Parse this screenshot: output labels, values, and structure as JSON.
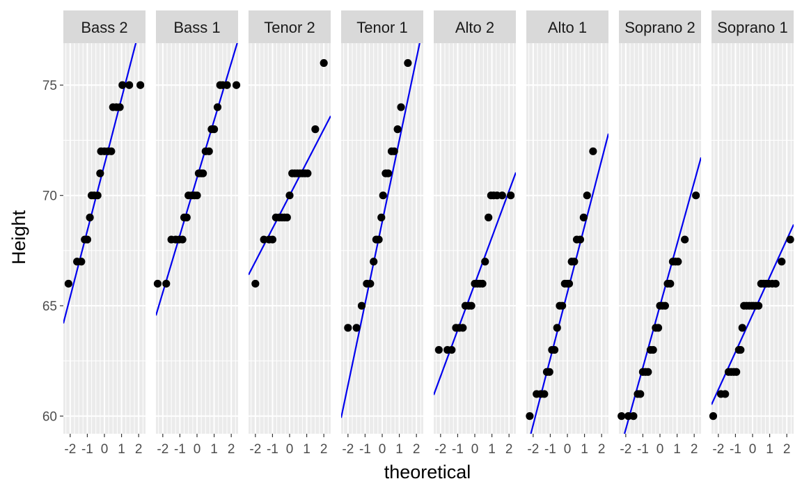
{
  "chart_data": {
    "type": "scatter",
    "subtype": "faceted normal Q-Q plot with reference lines",
    "xlabel": "theoretical",
    "ylabel": "Height",
    "xlim": [
      -2.4,
      2.4
    ],
    "ylim": [
      59.2,
      76.9
    ],
    "x_ticks": [
      -2,
      -1,
      0,
      1,
      2
    ],
    "x_tick_labels": [
      "-2",
      "-1",
      "0",
      "1",
      "2"
    ],
    "y_ticks": [
      60,
      65,
      70,
      75
    ],
    "y_tick_labels": [
      "60",
      "65",
      "70",
      "75"
    ],
    "grid": true,
    "legend": "none",
    "colors": {
      "panel_background": "#ebebeb",
      "grid": "#ffffff",
      "strip_background": "#d9d9d9",
      "points": "#000000",
      "reference_line": "#0000ee"
    },
    "facets": [
      {
        "label": "Bass 2",
        "line": {
          "intercept": 71.4,
          "slope": 3.0
        },
        "points": [
          [
            -2.1,
            66
          ],
          [
            -1.6,
            67
          ],
          [
            -1.35,
            67
          ],
          [
            -1.15,
            68
          ],
          [
            -1.0,
            68
          ],
          [
            -0.85,
            69
          ],
          [
            -0.75,
            70
          ],
          [
            -0.6,
            70
          ],
          [
            -0.4,
            70
          ],
          [
            -0.25,
            71
          ],
          [
            -0.2,
            72
          ],
          [
            0.0,
            72
          ],
          [
            0.2,
            72
          ],
          [
            0.4,
            72
          ],
          [
            0.5,
            74
          ],
          [
            0.7,
            74
          ],
          [
            0.9,
            74
          ],
          [
            1.05,
            75
          ],
          [
            1.45,
            75
          ],
          [
            2.1,
            75
          ]
        ]
      },
      {
        "label": "Bass 1",
        "line": {
          "intercept": 70.8,
          "slope": 2.6
        },
        "points": [
          [
            -2.3,
            66
          ],
          [
            -1.8,
            66
          ],
          [
            -1.5,
            68
          ],
          [
            -1.25,
            68
          ],
          [
            -1.05,
            68
          ],
          [
            -0.85,
            68
          ],
          [
            -0.75,
            69
          ],
          [
            -0.6,
            69
          ],
          [
            -0.5,
            70
          ],
          [
            -0.3,
            70
          ],
          [
            -0.15,
            70
          ],
          [
            0.0,
            70
          ],
          [
            0.1,
            71
          ],
          [
            0.25,
            71
          ],
          [
            0.35,
            71
          ],
          [
            0.5,
            72
          ],
          [
            0.7,
            72
          ],
          [
            0.85,
            73
          ],
          [
            1.0,
            73
          ],
          [
            1.2,
            74
          ],
          [
            1.35,
            75
          ],
          [
            1.5,
            75
          ],
          [
            1.75,
            75
          ],
          [
            2.3,
            75
          ]
        ]
      },
      {
        "label": "Tenor 2",
        "line": {
          "intercept": 70.0,
          "slope": 1.5
        },
        "points": [
          [
            -2.0,
            66
          ],
          [
            -1.5,
            68
          ],
          [
            -1.2,
            68
          ],
          [
            -1.0,
            68
          ],
          [
            -0.8,
            69
          ],
          [
            -0.6,
            69
          ],
          [
            -0.45,
            69
          ],
          [
            -0.3,
            69
          ],
          [
            -0.15,
            69
          ],
          [
            0.0,
            70
          ],
          [
            0.15,
            71
          ],
          [
            0.3,
            71
          ],
          [
            0.45,
            71
          ],
          [
            0.6,
            71
          ],
          [
            0.75,
            71
          ],
          [
            0.9,
            71
          ],
          [
            1.05,
            71
          ],
          [
            1.5,
            73
          ],
          [
            2.0,
            76
          ]
        ]
      },
      {
        "label": "Tenor 1",
        "line": {
          "intercept": 68.8,
          "slope": 3.7
        },
        "points": [
          [
            -2.0,
            64
          ],
          [
            -1.5,
            64
          ],
          [
            -1.2,
            65
          ],
          [
            -0.9,
            66
          ],
          [
            -0.7,
            66
          ],
          [
            -0.5,
            67
          ],
          [
            -0.35,
            68
          ],
          [
            -0.2,
            68
          ],
          [
            -0.05,
            69
          ],
          [
            0.05,
            70
          ],
          [
            0.2,
            71
          ],
          [
            0.35,
            71
          ],
          [
            0.55,
            72
          ],
          [
            0.7,
            72
          ],
          [
            0.9,
            73
          ],
          [
            1.1,
            74
          ],
          [
            1.5,
            76
          ]
        ]
      },
      {
        "label": "Alto 2",
        "line": {
          "intercept": 66.0,
          "slope": 2.1
        },
        "points": [
          [
            -2.1,
            63
          ],
          [
            -1.6,
            63
          ],
          [
            -1.35,
            63
          ],
          [
            -1.1,
            64
          ],
          [
            -0.9,
            64
          ],
          [
            -0.7,
            64
          ],
          [
            -0.55,
            65
          ],
          [
            -0.35,
            65
          ],
          [
            -0.2,
            65
          ],
          [
            0.0,
            66
          ],
          [
            0.15,
            66
          ],
          [
            0.3,
            66
          ],
          [
            0.45,
            66
          ],
          [
            0.6,
            67
          ],
          [
            0.8,
            69
          ],
          [
            0.95,
            70
          ],
          [
            1.1,
            70
          ],
          [
            1.3,
            70
          ],
          [
            1.6,
            70
          ],
          [
            2.1,
            70
          ]
        ]
      },
      {
        "label": "Alto 1",
        "line": {
          "intercept": 65.6,
          "slope": 3.0
        },
        "points": [
          [
            -2.2,
            60
          ],
          [
            -1.8,
            61
          ],
          [
            -1.55,
            61
          ],
          [
            -1.35,
            61
          ],
          [
            -1.2,
            62
          ],
          [
            -1.05,
            62
          ],
          [
            -0.9,
            63
          ],
          [
            -0.75,
            63
          ],
          [
            -0.6,
            64
          ],
          [
            -0.45,
            65
          ],
          [
            -0.3,
            65
          ],
          [
            -0.15,
            66
          ],
          [
            0.0,
            66
          ],
          [
            0.1,
            66
          ],
          [
            0.25,
            67
          ],
          [
            0.4,
            67
          ],
          [
            0.55,
            68
          ],
          [
            0.75,
            68
          ],
          [
            0.95,
            69
          ],
          [
            1.15,
            70
          ],
          [
            1.5,
            72
          ]
        ]
      },
      {
        "label": "Soprano 2",
        "line": {
          "intercept": 65.0,
          "slope": 2.8
        },
        "points": [
          [
            -2.25,
            60
          ],
          [
            -1.85,
            60
          ],
          [
            -1.55,
            60
          ],
          [
            -1.3,
            61
          ],
          [
            -1.15,
            61
          ],
          [
            -1.0,
            62
          ],
          [
            -0.85,
            62
          ],
          [
            -0.7,
            62
          ],
          [
            -0.55,
            63
          ],
          [
            -0.4,
            63
          ],
          [
            -0.25,
            64
          ],
          [
            -0.1,
            64
          ],
          [
            0.0,
            65
          ],
          [
            0.15,
            65
          ],
          [
            0.3,
            65
          ],
          [
            0.45,
            66
          ],
          [
            0.6,
            66
          ],
          [
            0.75,
            67
          ],
          [
            0.9,
            67
          ],
          [
            1.05,
            67
          ],
          [
            1.45,
            68
          ],
          [
            2.1,
            70
          ]
        ]
      },
      {
        "label": "Soprano 1",
        "line": {
          "intercept": 64.6,
          "slope": 1.7
        },
        "points": [
          [
            -2.3,
            60
          ],
          [
            -1.85,
            61
          ],
          [
            -1.6,
            61
          ],
          [
            -1.4,
            62
          ],
          [
            -1.25,
            62
          ],
          [
            -1.1,
            62
          ],
          [
            -0.95,
            62
          ],
          [
            -0.8,
            63
          ],
          [
            -0.7,
            63
          ],
          [
            -0.6,
            64
          ],
          [
            -0.5,
            65
          ],
          [
            -0.35,
            65
          ],
          [
            -0.2,
            65
          ],
          [
            -0.05,
            65
          ],
          [
            0.05,
            65
          ],
          [
            0.2,
            65
          ],
          [
            0.35,
            65
          ],
          [
            0.5,
            66
          ],
          [
            0.65,
            66
          ],
          [
            0.8,
            66
          ],
          [
            0.95,
            66
          ],
          [
            1.15,
            66
          ],
          [
            1.35,
            66
          ],
          [
            1.7,
            67
          ],
          [
            2.2,
            68
          ]
        ]
      }
    ]
  }
}
